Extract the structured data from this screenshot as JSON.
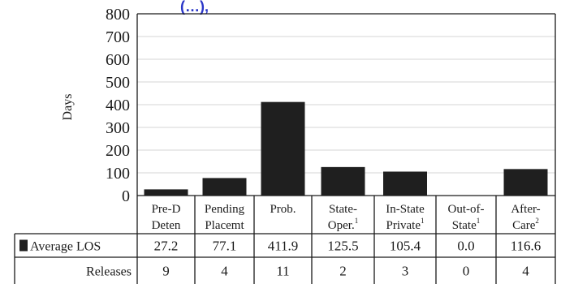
{
  "header_fragment": "(…),",
  "chart_data": {
    "type": "bar",
    "ylabel": "Days",
    "ylim": [
      0,
      800
    ],
    "yticks": [
      "0",
      "100",
      "200",
      "300",
      "400",
      "500",
      "600",
      "700",
      "800"
    ],
    "grid": true,
    "categories": [
      {
        "line1": "Pre-D",
        "line2": "Deten",
        "sup": ""
      },
      {
        "line1": "Pending",
        "line2": "Placemt",
        "sup": ""
      },
      {
        "line1": "Prob.",
        "line2": "",
        "sup": ""
      },
      {
        "line1": "State-",
        "line2": "Oper.",
        "sup": "1"
      },
      {
        "line1": "In-State",
        "line2": "Private",
        "sup": "1"
      },
      {
        "line1": "Out-of-",
        "line2": "State",
        "sup": "1"
      },
      {
        "line1": "After-",
        "line2": "Care",
        "sup": "2"
      }
    ],
    "series": [
      {
        "name": "Average LOS",
        "color": "#1f1f1f",
        "values": [
          27.2,
          77.1,
          411.9,
          125.5,
          105.4,
          0.0,
          116.6
        ],
        "display": [
          "27.2",
          "77.1",
          "411.9",
          "125.5",
          "105.4",
          "0.0",
          "116.6"
        ]
      }
    ],
    "table_rows": [
      {
        "label": "Releases",
        "values": [
          "9",
          "4",
          "11",
          "2",
          "3",
          "0",
          "4"
        ]
      }
    ]
  }
}
